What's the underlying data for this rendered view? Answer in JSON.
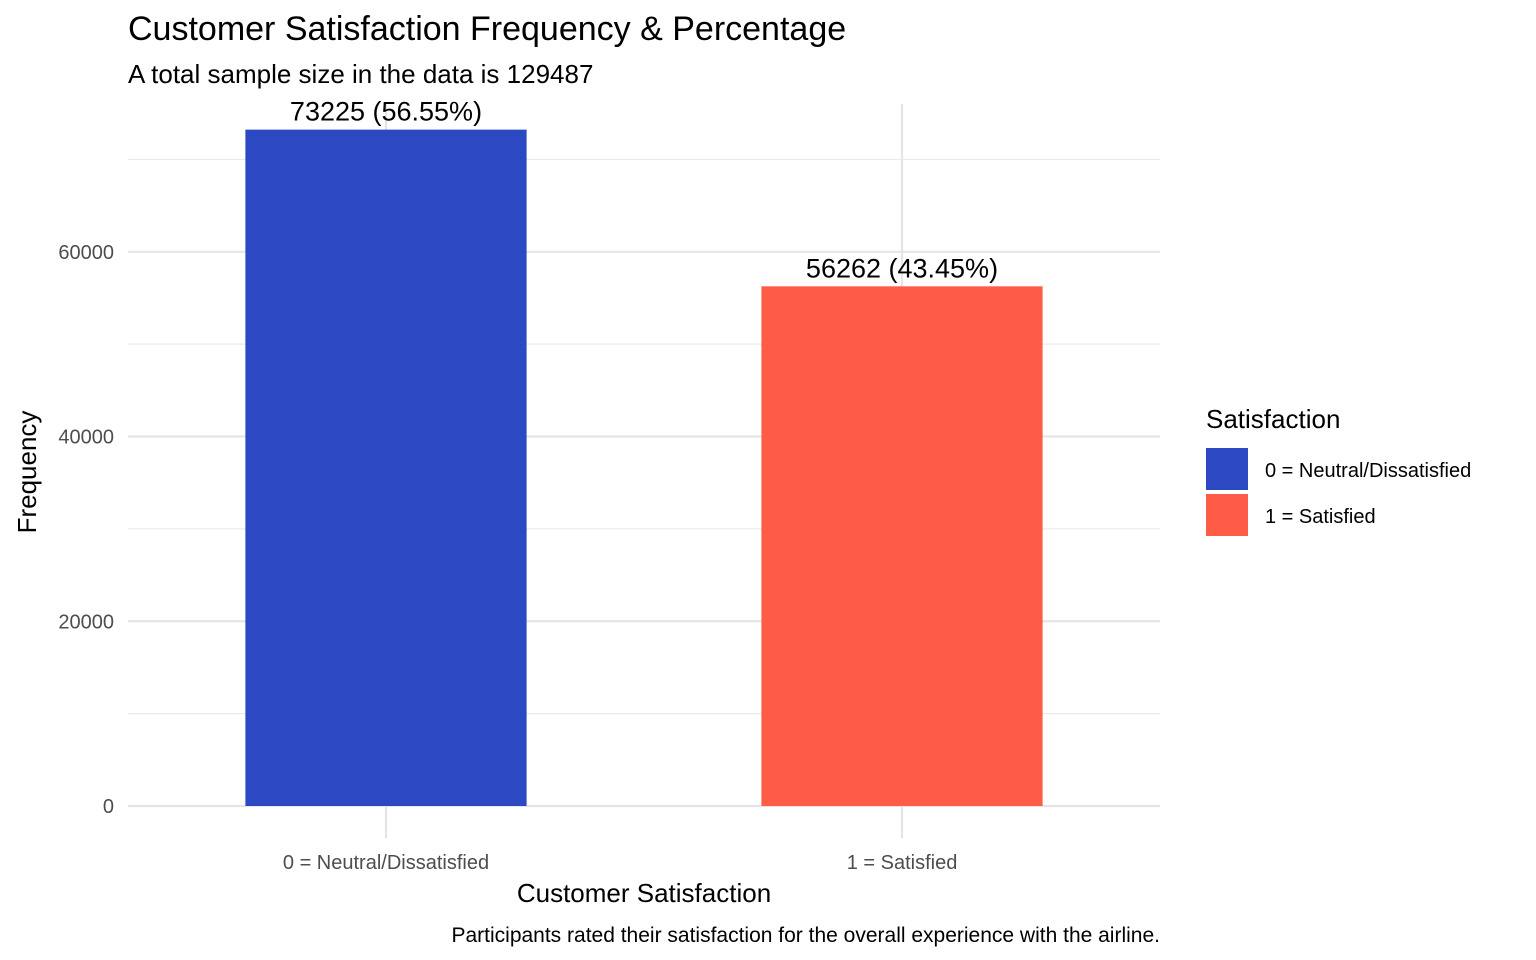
{
  "chart_data": {
    "type": "bar",
    "title": "Customer Satisfaction Frequency & Percentage",
    "subtitle": "A total sample size in the data is 129487",
    "xlabel": "Customer Satisfaction",
    "ylabel": "Frequency",
    "caption": "Participants rated their satisfaction for the overall experience with the airline.",
    "categories": [
      "0 = Neutral/Dissatisfied",
      "1 = Satisfied"
    ],
    "values": [
      73225,
      56262
    ],
    "data_labels": [
      "73225 (56.55%)",
      "56262 (43.45%)"
    ],
    "colors": [
      "#2C49C3",
      "#FF5C48"
    ],
    "ylim": [
      0,
      76000
    ],
    "yticks": [
      0,
      20000,
      40000,
      60000
    ],
    "yticks_labels": [
      "0",
      "20000",
      "40000",
      "60000"
    ],
    "grid": true,
    "legend": {
      "title": "Satisfaction",
      "placement": "right",
      "entries": [
        "0 = Neutral/Dissatisfied",
        "1 = Satisfied"
      ]
    }
  }
}
